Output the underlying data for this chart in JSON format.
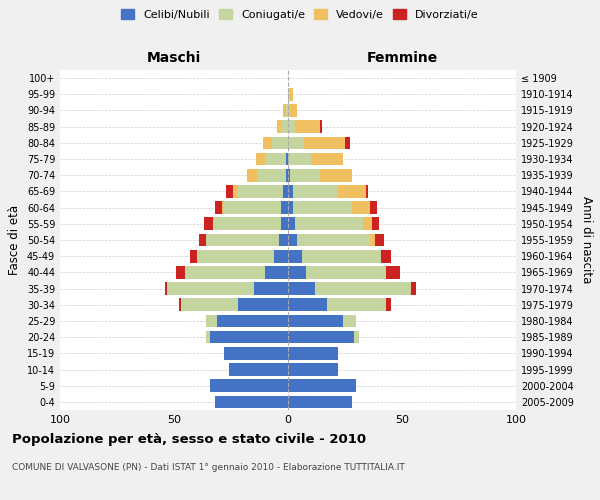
{
  "age_groups": [
    "0-4",
    "5-9",
    "10-14",
    "15-19",
    "20-24",
    "25-29",
    "30-34",
    "35-39",
    "40-44",
    "45-49",
    "50-54",
    "55-59",
    "60-64",
    "65-69",
    "70-74",
    "75-79",
    "80-84",
    "85-89",
    "90-94",
    "95-99",
    "100+"
  ],
  "birth_years": [
    "2005-2009",
    "2000-2004",
    "1995-1999",
    "1990-1994",
    "1985-1989",
    "1980-1984",
    "1975-1979",
    "1970-1974",
    "1965-1969",
    "1960-1964",
    "1955-1959",
    "1950-1954",
    "1945-1949",
    "1940-1944",
    "1935-1939",
    "1930-1934",
    "1925-1929",
    "1920-1924",
    "1915-1919",
    "1910-1914",
    "≤ 1909"
  ],
  "maschi": {
    "celibi": [
      32,
      34,
      26,
      28,
      34,
      31,
      22,
      15,
      10,
      6,
      4,
      3,
      3,
      2,
      1,
      1,
      0,
      0,
      0,
      0,
      0
    ],
    "coniugati": [
      0,
      0,
      0,
      0,
      2,
      5,
      25,
      38,
      35,
      34,
      32,
      30,
      25,
      20,
      12,
      9,
      7,
      3,
      1,
      0,
      0
    ],
    "vedovi": [
      0,
      0,
      0,
      0,
      0,
      0,
      0,
      0,
      0,
      0,
      0,
      0,
      1,
      2,
      5,
      4,
      4,
      2,
      1,
      0,
      0
    ],
    "divorziati": [
      0,
      0,
      0,
      0,
      0,
      0,
      1,
      1,
      4,
      3,
      3,
      4,
      3,
      3,
      0,
      0,
      0,
      0,
      0,
      0,
      0
    ]
  },
  "femmine": {
    "nubili": [
      28,
      30,
      22,
      22,
      29,
      24,
      17,
      12,
      8,
      6,
      4,
      3,
      2,
      2,
      1,
      0,
      0,
      0,
      0,
      0,
      0
    ],
    "coniugate": [
      0,
      0,
      0,
      0,
      2,
      6,
      26,
      42,
      35,
      35,
      32,
      30,
      26,
      20,
      13,
      10,
      7,
      3,
      1,
      1,
      0
    ],
    "vedove": [
      0,
      0,
      0,
      0,
      0,
      0,
      0,
      0,
      0,
      0,
      2,
      4,
      8,
      12,
      14,
      14,
      18,
      11,
      3,
      1,
      0
    ],
    "divorziate": [
      0,
      0,
      0,
      0,
      0,
      0,
      2,
      2,
      6,
      4,
      4,
      3,
      3,
      1,
      0,
      0,
      2,
      1,
      0,
      0,
      0
    ]
  },
  "colors": {
    "celibi": "#4472c4",
    "coniugati": "#c5d5a0",
    "vedovi": "#f0c060",
    "divorziati": "#cc2222"
  },
  "xlim": 100,
  "title": "Popolazione per età, sesso e stato civile - 2010",
  "subtitle": "COMUNE DI VALVASONE (PN) - Dati ISTAT 1° gennaio 2010 - Elaborazione TUTTITALIA.IT",
  "xlabel_left": "Maschi",
  "xlabel_right": "Femmine",
  "ylabel_left": "Fasce di età",
  "ylabel_right": "Anni di nascita",
  "legend": [
    "Celibi/Nubili",
    "Coniugati/e",
    "Vedovi/e",
    "Divorziati/e"
  ],
  "bg_color": "#f0f0f0",
  "plot_bg": "#ffffff"
}
